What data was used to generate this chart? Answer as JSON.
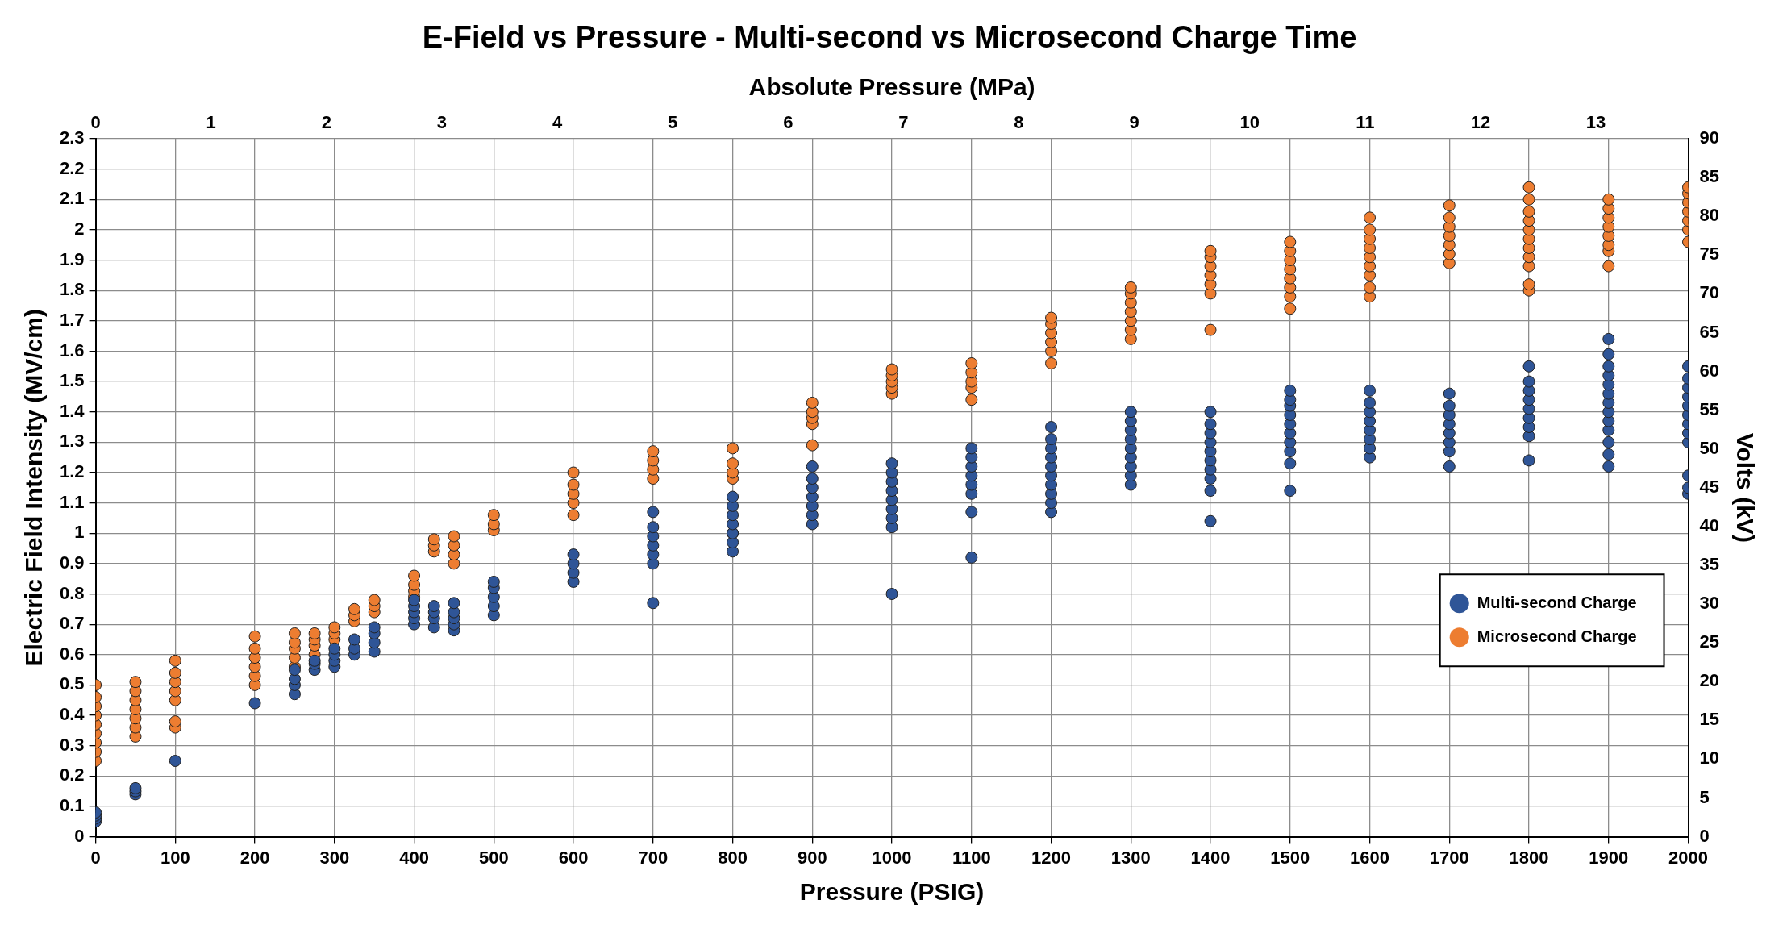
{
  "chart_data": {
    "type": "scatter",
    "title": "E-Field vs Pressure - Multi-second vs Microsecond Charge Time",
    "xlabel": "Pressure (PSIG)",
    "ylabel": "Electric Field Intensity (MV/cm)",
    "y2label": "Volts (kV)",
    "x2label": "Absolute Pressure (MPa)",
    "xlim": [
      0,
      2000
    ],
    "xticks": [
      0,
      100,
      200,
      300,
      400,
      500,
      600,
      700,
      800,
      900,
      1000,
      1100,
      1200,
      1300,
      1400,
      1500,
      1600,
      1700,
      1800,
      1900,
      2000
    ],
    "ylim": [
      0,
      2.3
    ],
    "yticks": [
      0,
      0.1,
      0.2,
      0.3,
      0.4,
      0.5,
      0.6,
      0.7,
      0.8,
      0.9,
      1,
      1.1,
      1.2,
      1.3,
      1.4,
      1.5,
      1.6,
      1.7,
      1.8,
      1.9,
      2,
      2.1,
      2.2,
      2.3
    ],
    "y2lim": [
      0,
      90
    ],
    "y2ticks": [
      0,
      5,
      10,
      15,
      20,
      25,
      30,
      35,
      40,
      45,
      50,
      55,
      60,
      65,
      70,
      75,
      80,
      85,
      90
    ],
    "x2lim": [
      0,
      13.8
    ],
    "x2ticks": [
      0,
      1,
      2,
      3,
      4,
      5,
      6,
      7,
      8,
      9,
      10,
      11,
      12,
      13
    ],
    "grid": true,
    "legend": "right",
    "marker": "circle",
    "series": [
      {
        "name": "Multi-second Charge",
        "color": "#2f5597",
        "x": [
          0,
          0,
          0,
          0,
          50,
          50,
          50,
          100,
          200,
          250,
          250,
          250,
          250,
          275,
          275,
          275,
          300,
          300,
          300,
          300,
          325,
          325,
          325,
          350,
          350,
          350,
          350,
          400,
          400,
          400,
          400,
          400,
          425,
          425,
          425,
          425,
          450,
          450,
          450,
          450,
          450,
          500,
          500,
          500,
          500,
          500,
          600,
          600,
          600,
          600,
          700,
          700,
          700,
          700,
          700,
          700,
          700,
          800,
          800,
          800,
          800,
          800,
          800,
          800,
          900,
          900,
          900,
          900,
          900,
          900,
          900,
          1000,
          1000,
          1000,
          1000,
          1000,
          1000,
          1000,
          1000,
          1000,
          1100,
          1100,
          1100,
          1100,
          1100,
          1100,
          1100,
          1100,
          1200,
          1200,
          1200,
          1200,
          1200,
          1200,
          1200,
          1200,
          1200,
          1200,
          1300,
          1300,
          1300,
          1300,
          1300,
          1300,
          1300,
          1300,
          1300,
          1400,
          1400,
          1400,
          1400,
          1400,
          1400,
          1400,
          1400,
          1400,
          1400,
          1500,
          1500,
          1500,
          1500,
          1500,
          1500,
          1500,
          1500,
          1500,
          1500,
          1600,
          1600,
          1600,
          1600,
          1600,
          1600,
          1600,
          1600,
          1700,
          1700,
          1700,
          1700,
          1700,
          1700,
          1700,
          1700,
          1800,
          1800,
          1800,
          1800,
          1800,
          1800,
          1800,
          1800,
          1800,
          1900,
          1900,
          1900,
          1900,
          1900,
          1900,
          1900,
          1900,
          1900,
          1900,
          1900,
          1900,
          1900,
          2000,
          2000,
          2000,
          2000,
          2000,
          2000,
          2000,
          2000,
          2000,
          2000,
          2000,
          2000
        ],
        "values": [
          0.05,
          0.06,
          0.07,
          0.08,
          0.14,
          0.15,
          0.16,
          0.25,
          0.44,
          0.47,
          0.5,
          0.52,
          0.55,
          0.55,
          0.57,
          0.58,
          0.56,
          0.58,
          0.6,
          0.62,
          0.6,
          0.62,
          0.65,
          0.61,
          0.64,
          0.67,
          0.69,
          0.7,
          0.72,
          0.74,
          0.76,
          0.78,
          0.69,
          0.72,
          0.74,
          0.76,
          0.68,
          0.7,
          0.72,
          0.74,
          0.77,
          0.73,
          0.76,
          0.79,
          0.82,
          0.84,
          0.84,
          0.87,
          0.9,
          0.93,
          0.77,
          0.9,
          0.93,
          0.96,
          0.99,
          1.02,
          1.07,
          0.94,
          0.97,
          1.0,
          1.03,
          1.06,
          1.09,
          1.12,
          1.03,
          1.06,
          1.09,
          1.12,
          1.15,
          1.18,
          1.22,
          0.8,
          1.02,
          1.05,
          1.08,
          1.11,
          1.14,
          1.17,
          1.2,
          1.23,
          0.92,
          1.07,
          1.13,
          1.16,
          1.19,
          1.22,
          1.25,
          1.28,
          1.07,
          1.1,
          1.13,
          1.16,
          1.19,
          1.22,
          1.25,
          1.28,
          1.31,
          1.35,
          1.16,
          1.19,
          1.22,
          1.25,
          1.28,
          1.31,
          1.34,
          1.37,
          1.4,
          1.04,
          1.14,
          1.18,
          1.21,
          1.24,
          1.27,
          1.3,
          1.33,
          1.36,
          1.4,
          1.14,
          1.23,
          1.27,
          1.3,
          1.33,
          1.36,
          1.39,
          1.42,
          1.44,
          1.47,
          1.25,
          1.28,
          1.31,
          1.34,
          1.37,
          1.4,
          1.43,
          1.47,
          1.22,
          1.27,
          1.3,
          1.33,
          1.36,
          1.39,
          1.42,
          1.46,
          1.24,
          1.32,
          1.35,
          1.38,
          1.41,
          1.44,
          1.47,
          1.5,
          1.55,
          1.22,
          1.26,
          1.3,
          1.34,
          1.37,
          1.4,
          1.43,
          1.46,
          1.49,
          1.52,
          1.55,
          1.59,
          1.64,
          1.13,
          1.15,
          1.19,
          1.3,
          1.33,
          1.36,
          1.39,
          1.42,
          1.45,
          1.48,
          1.51,
          1.55
        ]
      },
      {
        "name": "Microsecond Charge",
        "color": "#ed7d31",
        "x": [
          0,
          0,
          0,
          0,
          0,
          0,
          0,
          0,
          0,
          50,
          50,
          50,
          50,
          50,
          50,
          50,
          100,
          100,
          100,
          100,
          100,
          100,
          100,
          200,
          200,
          200,
          200,
          200,
          200,
          250,
          250,
          250,
          250,
          250,
          275,
          275,
          275,
          275,
          300,
          300,
          300,
          325,
          325,
          325,
          350,
          350,
          350,
          400,
          400,
          400,
          400,
          425,
          425,
          425,
          450,
          450,
          450,
          450,
          500,
          500,
          500,
          600,
          600,
          600,
          600,
          600,
          700,
          700,
          700,
          700,
          800,
          800,
          800,
          800,
          800,
          900,
          900,
          900,
          900,
          900,
          1000,
          1000,
          1000,
          1000,
          1000,
          1100,
          1100,
          1100,
          1100,
          1100,
          1200,
          1200,
          1200,
          1200,
          1200,
          1200,
          1300,
          1300,
          1300,
          1300,
          1300,
          1300,
          1300,
          1400,
          1400,
          1400,
          1400,
          1400,
          1400,
          1400,
          1500,
          1500,
          1500,
          1500,
          1500,
          1500,
          1500,
          1500,
          1600,
          1600,
          1600,
          1600,
          1600,
          1600,
          1600,
          1600,
          1600,
          1700,
          1700,
          1700,
          1700,
          1700,
          1700,
          1700,
          1800,
          1800,
          1800,
          1800,
          1800,
          1800,
          1800,
          1800,
          1800,
          1800,
          1800,
          1900,
          1900,
          1900,
          1900,
          1900,
          1900,
          1900,
          1900,
          2000,
          2000,
          2000,
          2000,
          2000,
          2000,
          2000
        ],
        "values": [
          0.25,
          0.28,
          0.31,
          0.34,
          0.37,
          0.4,
          0.43,
          0.46,
          0.5,
          0.33,
          0.36,
          0.39,
          0.42,
          0.45,
          0.48,
          0.51,
          0.36,
          0.38,
          0.45,
          0.48,
          0.51,
          0.54,
          0.58,
          0.5,
          0.53,
          0.56,
          0.59,
          0.62,
          0.66,
          0.56,
          0.59,
          0.62,
          0.64,
          0.67,
          0.6,
          0.63,
          0.65,
          0.67,
          0.65,
          0.67,
          0.69,
          0.71,
          0.73,
          0.75,
          0.74,
          0.76,
          0.78,
          0.79,
          0.81,
          0.83,
          0.86,
          0.94,
          0.96,
          0.98,
          0.9,
          0.93,
          0.96,
          0.99,
          1.01,
          1.03,
          1.06,
          1.06,
          1.1,
          1.13,
          1.16,
          1.2,
          1.18,
          1.21,
          1.24,
          1.27,
          1.0,
          1.18,
          1.2,
          1.23,
          1.28,
          1.29,
          1.36,
          1.38,
          1.4,
          1.43,
          1.46,
          1.48,
          1.5,
          1.52,
          1.54,
          1.44,
          1.48,
          1.5,
          1.53,
          1.56,
          1.56,
          1.6,
          1.63,
          1.66,
          1.69,
          1.71,
          1.64,
          1.67,
          1.7,
          1.73,
          1.76,
          1.79,
          1.81,
          1.67,
          1.79,
          1.82,
          1.85,
          1.88,
          1.91,
          1.93,
          1.74,
          1.78,
          1.81,
          1.84,
          1.87,
          1.9,
          1.93,
          1.96,
          1.78,
          1.81,
          1.85,
          1.88,
          1.91,
          1.94,
          1.97,
          2.0,
          2.04,
          1.89,
          1.92,
          1.95,
          1.98,
          2.01,
          2.04,
          2.08,
          1.8,
          1.82,
          1.88,
          1.91,
          1.94,
          1.97,
          2.0,
          2.03,
          2.06,
          2.1,
          2.14,
          1.88,
          1.93,
          1.95,
          1.98,
          2.01,
          2.04,
          2.07,
          2.1,
          1.96,
          2.0,
          2.03,
          2.06,
          2.09,
          2.12,
          2.14
        ]
      }
    ]
  }
}
